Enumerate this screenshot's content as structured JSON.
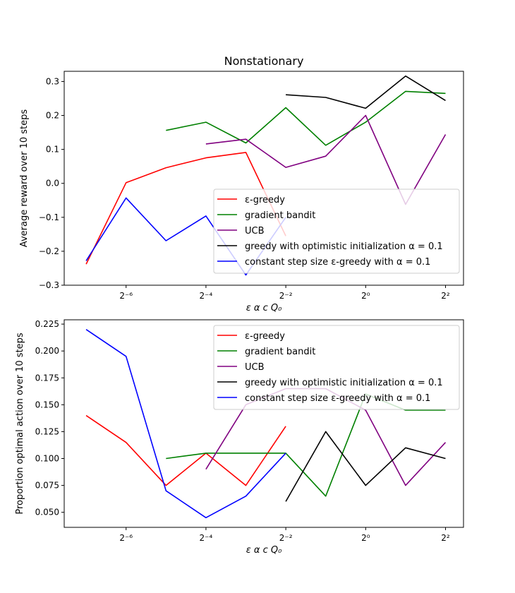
{
  "chart_data": [
    {
      "type": "line",
      "title": "Nonstationary",
      "xlabel": "ε   α   c   Q₀",
      "ylabel": "Average reward over 10 steps",
      "x_scale": "log2",
      "x_ticks": [
        "2⁻⁶",
        "2⁻⁴",
        "2⁻²",
        "2⁰",
        "2²"
      ],
      "y_ticks": [
        "−0.3",
        "−0.2",
        "−0.1",
        "0.0",
        "0.1",
        "0.2",
        "0.3"
      ],
      "ylim": [
        -0.3,
        0.33
      ],
      "legend_position": "lower-right",
      "series": [
        {
          "name": "ε-greedy",
          "color": "#ff0000",
          "x": [
            -7,
            -6,
            -5,
            -4,
            -3,
            -2
          ],
          "y": [
            -0.238,
            0.002,
            0.046,
            0.075,
            0.091,
            -0.155
          ]
        },
        {
          "name": "gradient bandit",
          "color": "#008000",
          "x": [
            -5,
            -4,
            -3,
            -2,
            -1,
            0,
            1,
            2
          ],
          "y": [
            0.156,
            0.18,
            0.119,
            0.223,
            0.112,
            0.18,
            0.271,
            0.265
          ]
        },
        {
          "name": "UCB",
          "color": "#800080",
          "x": [
            -4,
            -3,
            -2,
            -1,
            0,
            1,
            2
          ],
          "y": [
            0.116,
            0.13,
            0.047,
            0.08,
            0.2,
            -0.062,
            0.144
          ]
        },
        {
          "name": "greedy with optimistic initialization α = 0.1",
          "color": "#000000",
          "x": [
            -2,
            -1,
            0,
            1,
            2
          ],
          "y": [
            0.261,
            0.253,
            0.221,
            0.316,
            0.244
          ]
        },
        {
          "name": "constant step size ε-greedy with α = 0.1",
          "color": "#0000ff",
          "x": [
            -7,
            -6,
            -5,
            -4,
            -3,
            -2
          ],
          "y": [
            -0.228,
            -0.043,
            -0.169,
            -0.096,
            -0.27,
            -0.1
          ]
        }
      ]
    },
    {
      "type": "line",
      "title": "",
      "xlabel": "ε   α   c   Q₀",
      "ylabel": "Proportion optimal action over 10 steps",
      "x_scale": "log2",
      "x_ticks": [
        "2⁻⁶",
        "2⁻⁴",
        "2⁻²",
        "2⁰",
        "2²"
      ],
      "y_ticks": [
        "0.050",
        "0.075",
        "0.100",
        "0.125",
        "0.150",
        "0.175",
        "0.200",
        "0.225"
      ],
      "ylim": [
        0.036,
        0.229
      ],
      "legend_position": "upper-right",
      "series": [
        {
          "name": "ε-greedy",
          "color": "#ff0000",
          "x": [
            -7,
            -6,
            -5,
            -4,
            -3,
            -2
          ],
          "y": [
            0.14,
            0.115,
            0.075,
            0.105,
            0.075,
            0.13
          ]
        },
        {
          "name": "gradient bandit",
          "color": "#008000",
          "x": [
            -5,
            -4,
            -3,
            -2,
            -1,
            0,
            1,
            2
          ],
          "y": [
            0.1,
            0.105,
            0.105,
            0.105,
            0.065,
            0.16,
            0.145,
            0.145
          ]
        },
        {
          "name": "UCB",
          "color": "#800080",
          "x": [
            -4,
            -3,
            -2,
            -1,
            0,
            1,
            2
          ],
          "y": [
            0.09,
            0.15,
            0.165,
            0.165,
            0.145,
            0.075,
            0.115
          ]
        },
        {
          "name": "greedy with optimistic initialization α = 0.1",
          "color": "#000000",
          "x": [
            -2,
            -1,
            0,
            1,
            2
          ],
          "y": [
            0.06,
            0.125,
            0.075,
            0.11,
            0.1
          ]
        },
        {
          "name": "constant step size ε-greedy with α = 0.1",
          "color": "#0000ff",
          "x": [
            -7,
            -6,
            -5,
            -4,
            -3,
            -2
          ],
          "y": [
            0.22,
            0.195,
            0.07,
            0.045,
            0.065,
            0.105
          ]
        }
      ]
    }
  ]
}
